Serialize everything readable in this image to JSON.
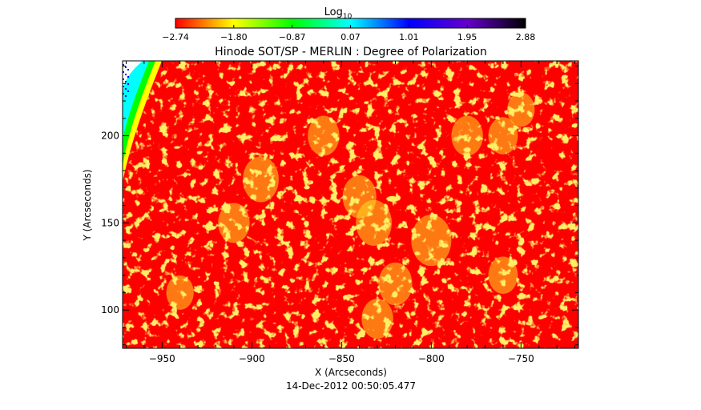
{
  "colorbar": {
    "label": "Log",
    "label_subscript": "10",
    "ticks": [
      "-2.74",
      "-1.80",
      "-0.87",
      "0.07",
      "1.01",
      "1.95",
      "2.88"
    ],
    "range": [
      -2.74,
      2.88
    ],
    "colors": [
      "#ff0000",
      "#ffff00",
      "#00ff00",
      "#00ffff",
      "#0000ff",
      "#6600cc",
      "#000000"
    ]
  },
  "chart_data": {
    "type": "heatmap",
    "title": "Hinode SOT/SP - MERLIN : Degree of Polarization",
    "xlabel": "X (Arcseconds)",
    "ylabel": "Y (Arcseconds)",
    "xlim": [
      -972,
      -718
    ],
    "ylim": [
      78,
      243
    ],
    "x_ticks": [
      -950,
      -900,
      -850,
      -800,
      -750
    ],
    "x_tick_labels": [
      "-950",
      "-900",
      "-850",
      "-800",
      "-750"
    ],
    "y_ticks": [
      100,
      150,
      200
    ],
    "y_tick_labels": [
      "100",
      "150",
      "200"
    ],
    "background_value": -2.74,
    "background_color": "#ff0000",
    "feature_color": "#ffdd22",
    "off_disk_color": "#ffffff",
    "limb_color_gradient": [
      "#ffff00",
      "#00ff00",
      "#00ffff",
      "#0000ff"
    ],
    "bright_regions": [
      {
        "x": -832,
        "y": 150,
        "value": -1.8
      },
      {
        "x": -800,
        "y": 140,
        "value": -1.6
      },
      {
        "x": -895,
        "y": 175,
        "value": -1.8
      },
      {
        "x": -910,
        "y": 150,
        "value": -2.0
      },
      {
        "x": -860,
        "y": 200,
        "value": -2.0
      },
      {
        "x": -840,
        "y": 165,
        "value": -1.9
      },
      {
        "x": -780,
        "y": 200,
        "value": -2.0
      },
      {
        "x": -760,
        "y": 200,
        "value": -2.1
      },
      {
        "x": -750,
        "y": 215,
        "value": -2.2
      },
      {
        "x": -830,
        "y": 95,
        "value": -2.0
      },
      {
        "x": -820,
        "y": 115,
        "value": -1.9
      },
      {
        "x": -760,
        "y": 120,
        "value": -2.1
      },
      {
        "x": -940,
        "y": 110,
        "value": -2.2
      }
    ]
  },
  "timestamp": "14-Dec-2012 00:50:05.477"
}
